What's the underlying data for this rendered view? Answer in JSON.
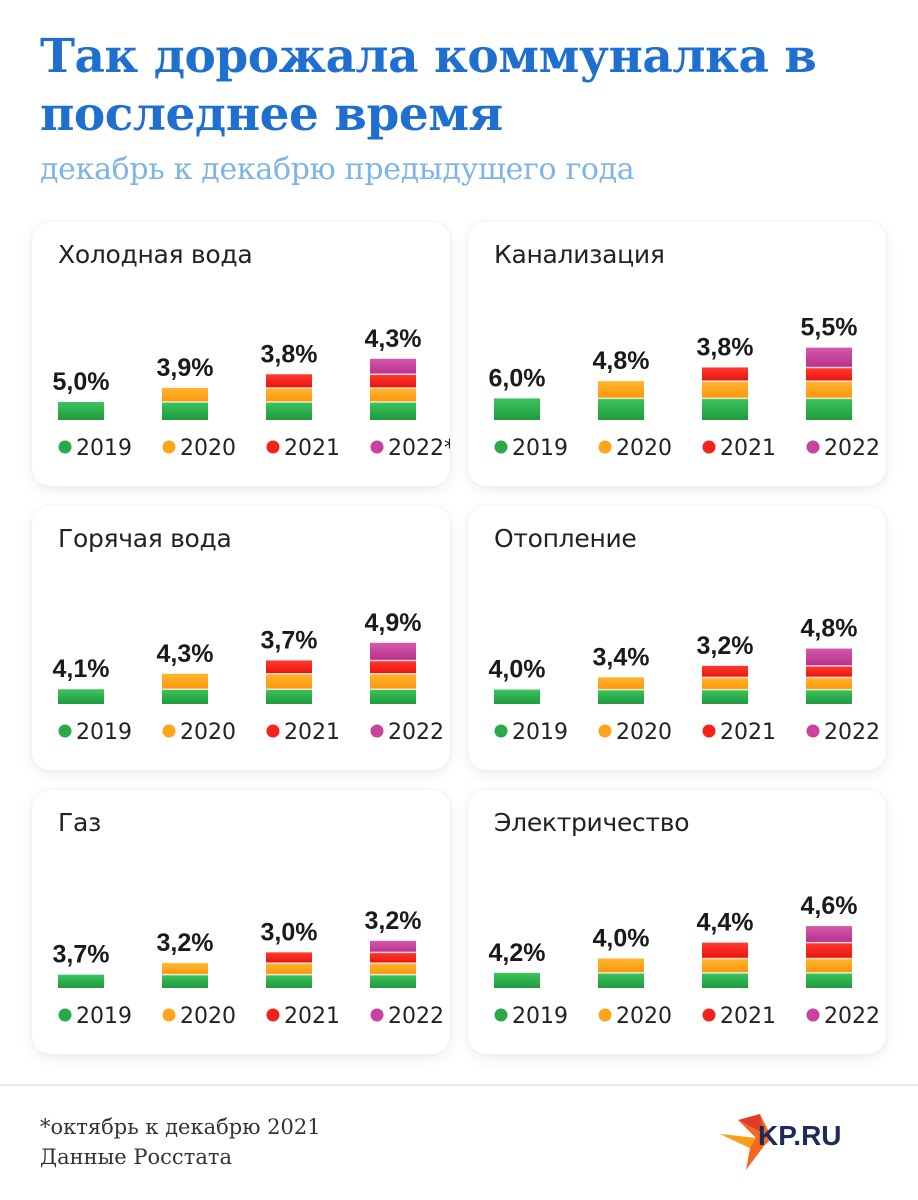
{
  "header": {
    "title": "Так дорожала коммуналка в последнее время",
    "subtitle": "декабрь к декабрю предыдущего года"
  },
  "colors": {
    "title": "#1f6fd1",
    "subtitle": "#7fb4e6",
    "2019": "#2aa84a",
    "2020": "#ffa51a",
    "2021": "#f4221b",
    "2022": "#c8429e"
  },
  "chart_data": [
    {
      "type": "bar",
      "title": "Холодная вода",
      "categories": [
        "2019",
        "2020",
        "2021",
        "2022*"
      ],
      "values": [
        5.0,
        3.9,
        3.8,
        4.3
      ],
      "labels": [
        "5,0%",
        "3,9%",
        "3,8%",
        "4,3%"
      ],
      "stacked_cumulative": true
    },
    {
      "type": "bar",
      "title": "Канализация",
      "categories": [
        "2019",
        "2020",
        "2021",
        "2022"
      ],
      "values": [
        6.0,
        4.8,
        3.8,
        5.5
      ],
      "labels": [
        "6,0%",
        "4,8%",
        "3,8%",
        "5,5%"
      ],
      "stacked_cumulative": true
    },
    {
      "type": "bar",
      "title": "Горячая вода",
      "categories": [
        "2019",
        "2020",
        "2021",
        "2022"
      ],
      "values": [
        4.1,
        4.3,
        3.7,
        4.9
      ],
      "labels": [
        "4,1%",
        "4,3%",
        "3,7%",
        "4,9%"
      ],
      "stacked_cumulative": true
    },
    {
      "type": "bar",
      "title": "Отопление",
      "categories": [
        "2019",
        "2020",
        "2021",
        "2022"
      ],
      "values": [
        4.0,
        3.4,
        3.2,
        4.8
      ],
      "labels": [
        "4,0%",
        "3,4%",
        "3,2%",
        "4,8%"
      ],
      "stacked_cumulative": true
    },
    {
      "type": "bar",
      "title": "Газ",
      "categories": [
        "2019",
        "2020",
        "2021",
        "2022"
      ],
      "values": [
        3.7,
        3.2,
        3.0,
        3.2
      ],
      "labels": [
        "3,7%",
        "3,2%",
        "3,0%",
        "3,2%"
      ],
      "stacked_cumulative": true
    },
    {
      "type": "bar",
      "title": "Электричество",
      "categories": [
        "2019",
        "2020",
        "2021",
        "2022"
      ],
      "values": [
        4.2,
        4.0,
        4.4,
        4.6
      ],
      "labels": [
        "4,2%",
        "4,0%",
        "4,4%",
        "4,6%"
      ],
      "stacked_cumulative": true
    }
  ],
  "footnote": {
    "line1": "*октябрь к декабрю 2021",
    "line2": "Данные Росстата"
  },
  "logo": {
    "text": "KP.RU",
    "icon": "kp-bird-icon"
  }
}
